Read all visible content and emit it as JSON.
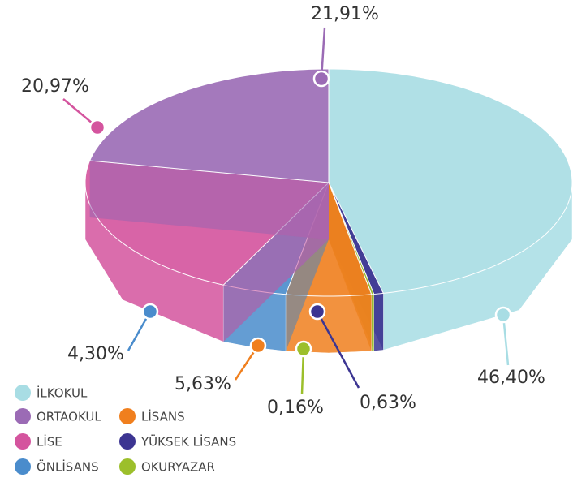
{
  "chart_data": {
    "type": "pie",
    "categories": [
      "İLKOKUL",
      "ORTAOKUL",
      "LİSE",
      "ÖNLİSANS",
      "LİSANS",
      "YÜKSEK LİSANS",
      "OKURYAZAR"
    ],
    "values": [
      46.4,
      21.91,
      20.97,
      4.3,
      5.63,
      0.63,
      0.16
    ],
    "value_labels": [
      "46,40%",
      "21,91%",
      "20,97%",
      "4,30%",
      "5,63%",
      "0,63%",
      "0,16%"
    ],
    "colors": [
      "#a8dde4",
      "#9b6bb5",
      "#d4549e",
      "#4a8ccc",
      "#f07f1e",
      "#3c3592",
      "#9cbf2b"
    ],
    "legend": "bottom-left"
  }
}
